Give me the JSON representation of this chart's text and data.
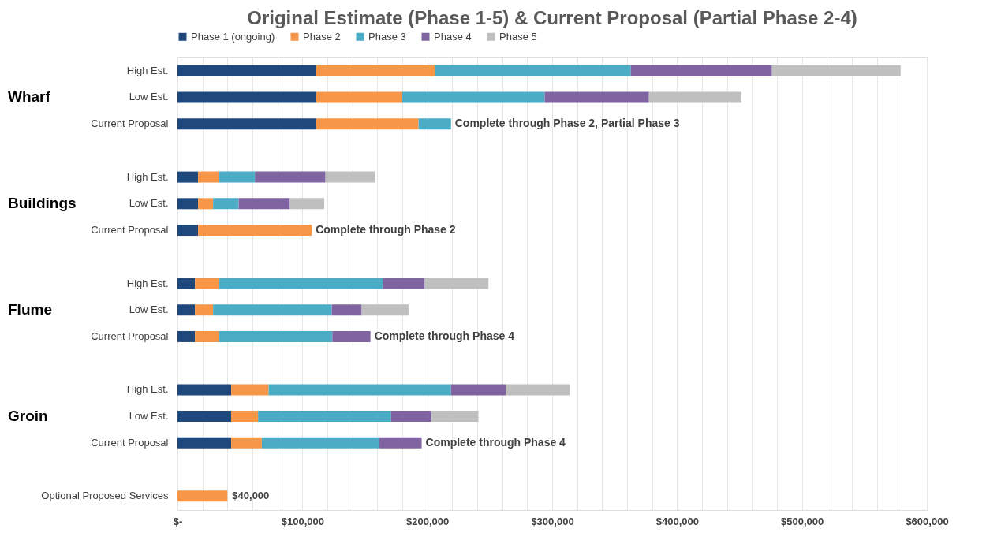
{
  "chart_data": {
    "type": "bar",
    "orientation": "horizontal",
    "stacked": true,
    "title": "Original Estimate (Phase 1-5) & Current Proposal (Partial Phase 2-4)",
    "categories": [
      "High Est.",
      "Low Est.",
      "Current Proposal",
      "High Est.",
      "Low Est.",
      "Current Proposal",
      "High Est.",
      "Low Est.",
      "Current Proposal",
      "High Est.",
      "Low Est.",
      "Current Proposal",
      "Optional Proposed Services"
    ],
    "series": [
      {
        "name": "Phase 1 (ongoing)",
        "color": "#1f497d",
        "values": [
          111000,
          111000,
          111000,
          16500,
          16500,
          16500,
          14000,
          14000,
          14000,
          43000,
          43000,
          43000,
          null
        ]
      },
      {
        "name": "Phase 2",
        "color": "#f79646",
        "values": [
          95000,
          69000,
          82000,
          17000,
          12000,
          91000,
          19500,
          14500,
          19500,
          30000,
          21500,
          24500,
          40000
        ],
        "value_labels": [
          null,
          null,
          null,
          null,
          null,
          null,
          null,
          null,
          null,
          null,
          null,
          null,
          "$40,000"
        ]
      },
      {
        "name": "Phase 3",
        "color": "#4bacc6",
        "values": [
          157000,
          114000,
          26000,
          28500,
          20500,
          null,
          131000,
          95000,
          90500,
          146000,
          106500,
          94000,
          null
        ]
      },
      {
        "name": "Phase 4",
        "color": "#8064a2",
        "values": [
          113000,
          83500,
          null,
          56500,
          41000,
          null,
          33500,
          24000,
          30500,
          44000,
          32500,
          34000,
          null
        ]
      },
      {
        "name": "Phase 5",
        "color": "#bfbfbf",
        "values": [
          103000,
          74000,
          null,
          39500,
          27500,
          null,
          51000,
          37500,
          null,
          51000,
          37500,
          null,
          null
        ]
      }
    ],
    "xlim": [
      0,
      600000
    ],
    "xticks": [
      {
        "value": 0,
        "label": "$-"
      },
      {
        "value": 20000,
        "label": null
      },
      {
        "value": 40000,
        "label": null
      },
      {
        "value": 60000,
        "label": null
      },
      {
        "value": 80000,
        "label": null
      },
      {
        "value": 100000,
        "label": "$100,000"
      },
      {
        "value": 120000,
        "label": null
      },
      {
        "value": 140000,
        "label": null
      },
      {
        "value": 160000,
        "label": null
      },
      {
        "value": 180000,
        "label": null
      },
      {
        "value": 200000,
        "label": "$200,000"
      },
      {
        "value": 220000,
        "label": null
      },
      {
        "value": 240000,
        "label": null
      },
      {
        "value": 260000,
        "label": null
      },
      {
        "value": 280000,
        "label": null
      },
      {
        "value": 300000,
        "label": "$300,000"
      },
      {
        "value": 320000,
        "label": null
      },
      {
        "value": 340000,
        "label": null
      },
      {
        "value": 360000,
        "label": null
      },
      {
        "value": 380000,
        "label": null
      },
      {
        "value": 400000,
        "label": "$400,000"
      },
      {
        "value": 420000,
        "label": null
      },
      {
        "value": 440000,
        "label": null
      },
      {
        "value": 460000,
        "label": null
      },
      {
        "value": 480000,
        "label": null
      },
      {
        "value": 500000,
        "label": "$500,000"
      },
      {
        "value": 520000,
        "label": null
      },
      {
        "value": 540000,
        "label": null
      },
      {
        "value": 560000,
        "label": null
      },
      {
        "value": 580000,
        "label": null
      },
      {
        "value": 600000,
        "label": "$600,000"
      }
    ],
    "annotations": [
      "Wharf",
      "Buildings",
      "Flume",
      "Groin",
      "Complete through Phase 2, Partial Phase 3",
      "Complete through Phase 2",
      "Complete through Phase 4",
      "Complete through Phase 4"
    ],
    "grid": "x",
    "legend": "top"
  }
}
